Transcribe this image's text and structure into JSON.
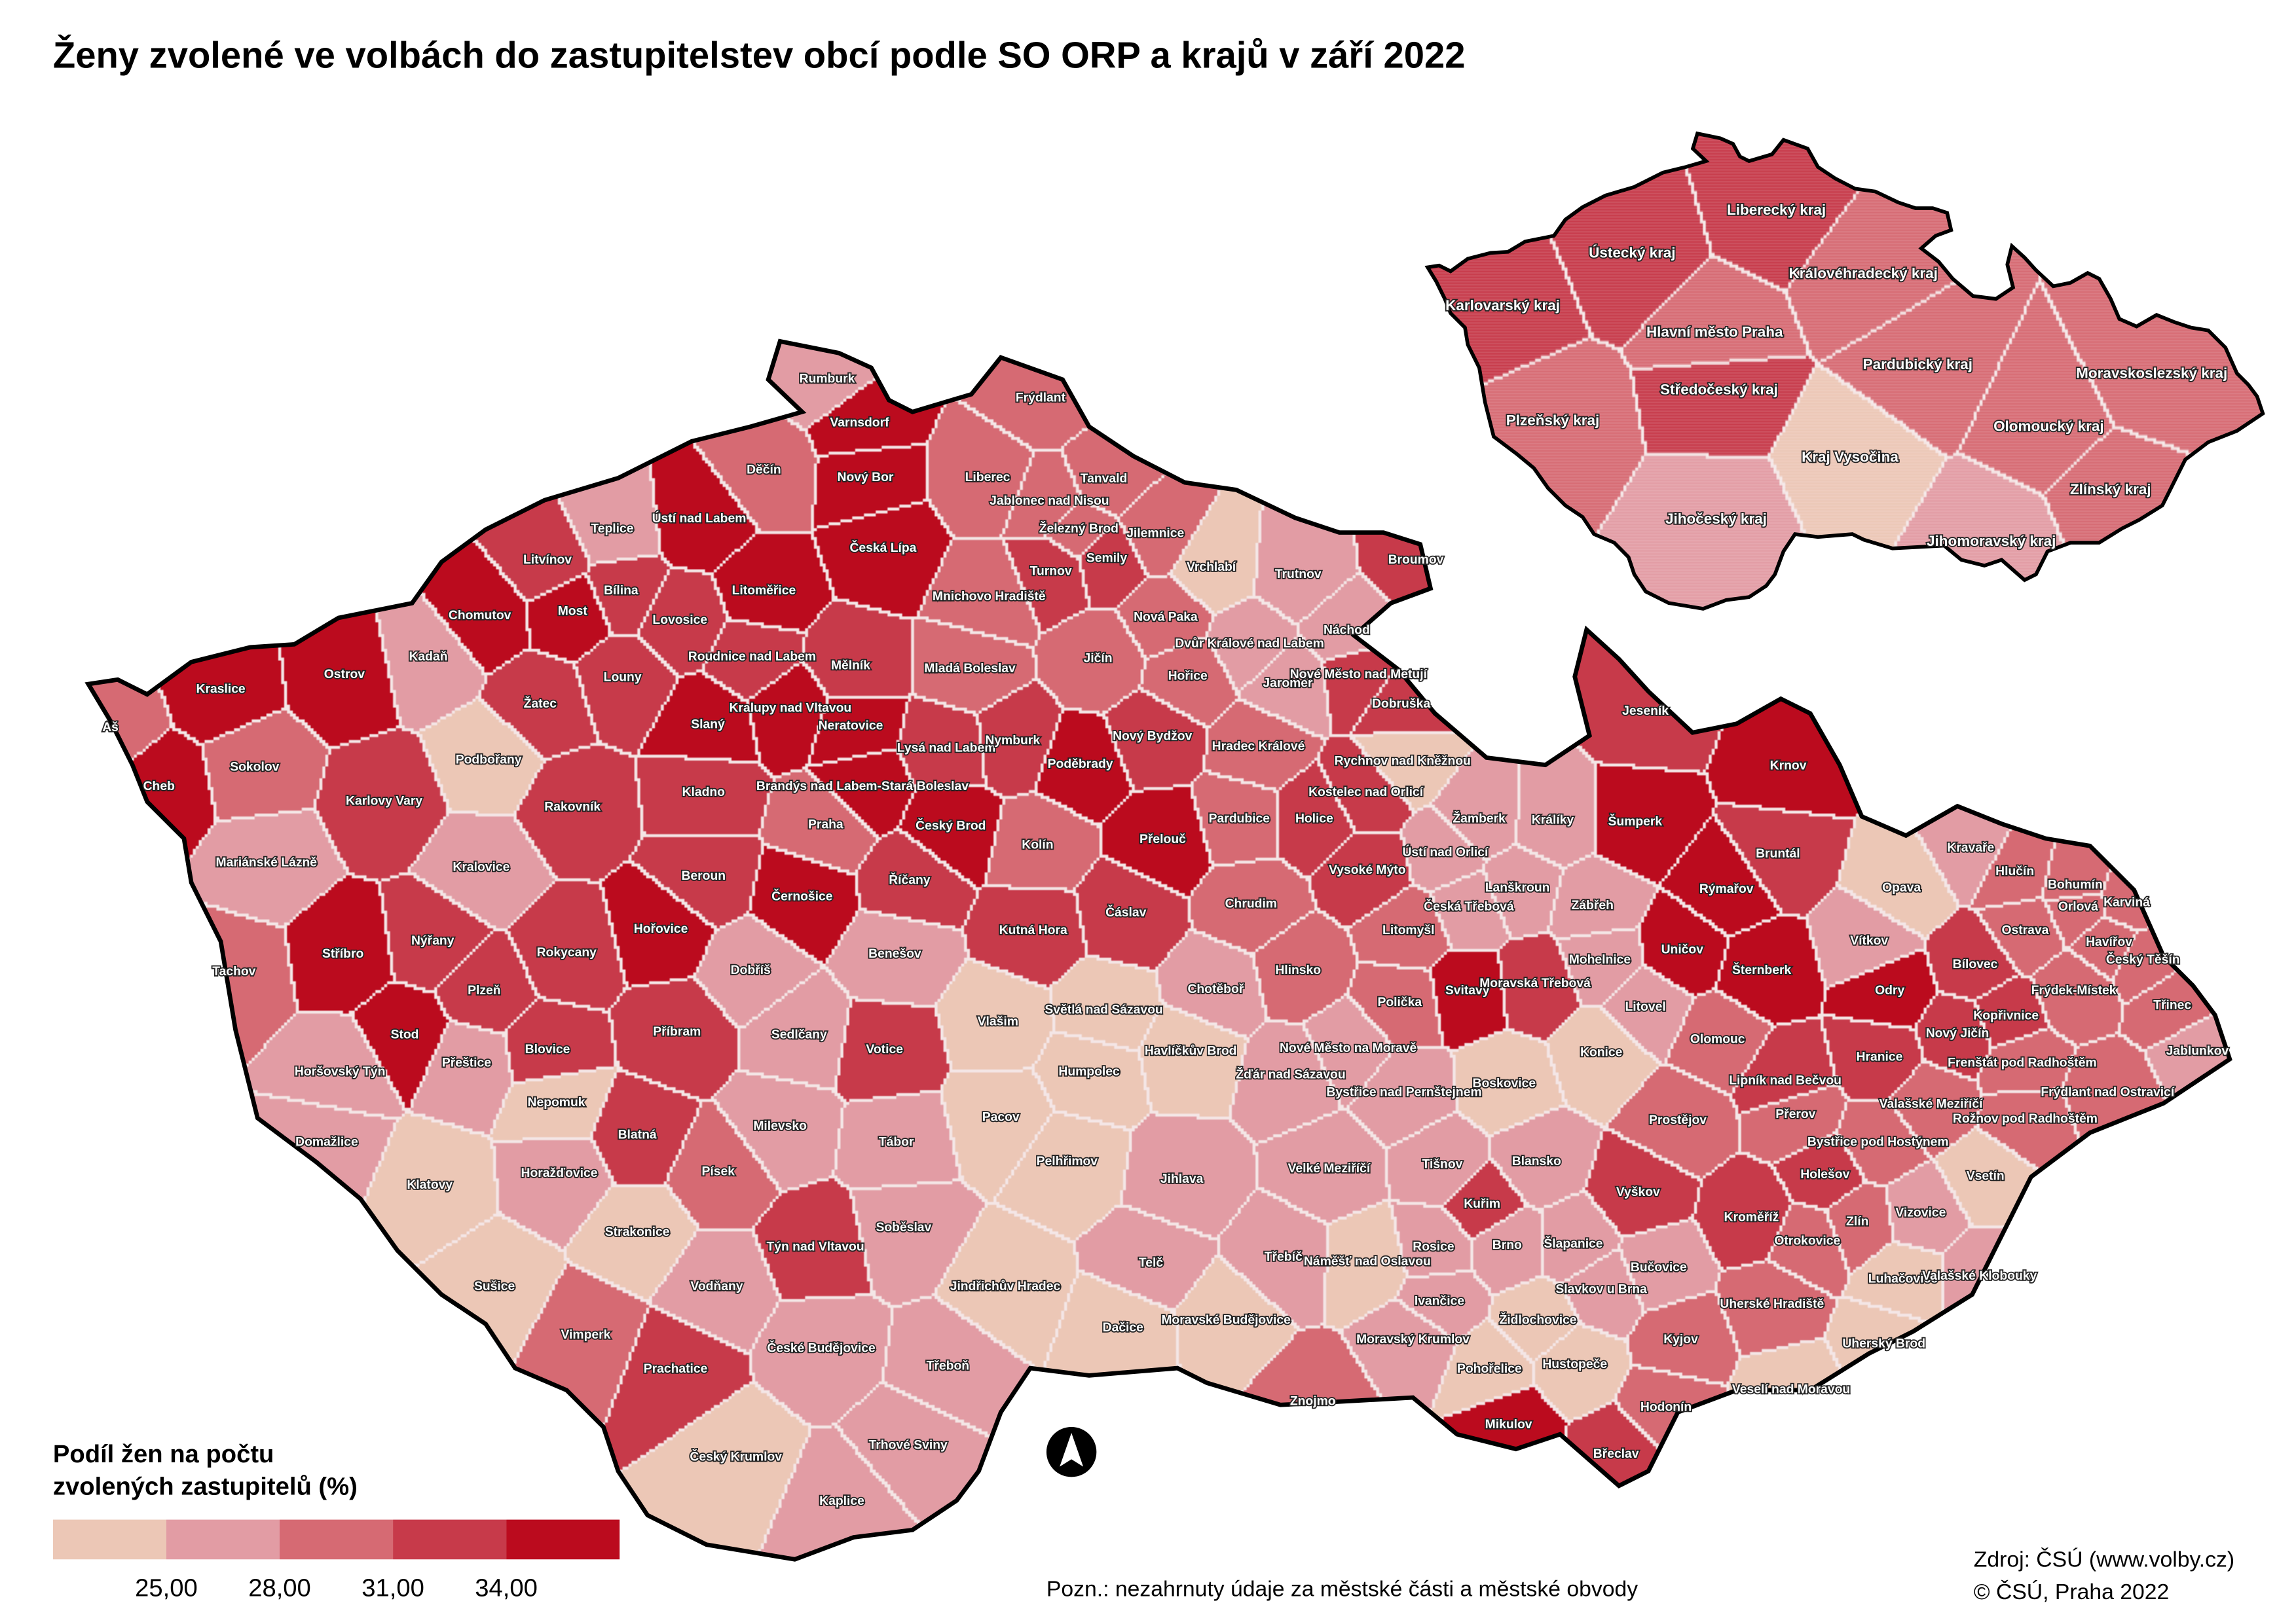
{
  "title": "Ženy zvolené ve volbách do zastupitelstev obcí podle SO ORP a krajů v září 2022",
  "legend": {
    "title_line1": "Podíl žen na počtu",
    "title_line2": "zvolených zastupitelů (%)",
    "ticks": [
      "25,00",
      "28,00",
      "31,00",
      "34,00"
    ],
    "colors": [
      "#ecc7b6",
      "#e29ca4",
      "#d66a73",
      "#c73a4a",
      "#bb0b1e"
    ]
  },
  "note": "Pozn.: nezahrnuty údaje za městské části a městské obvody",
  "source_line1": "Zdroj: ČSÚ (www.volby.cz)",
  "source_line2": "© ČSÚ, Praha 2022",
  "north_arrow": "north-arrow-icon",
  "kraje": [
    {
      "name": "Liberecký kraj",
      "class": 3
    },
    {
      "name": "Ústecký kraj",
      "class": 3
    },
    {
      "name": "Královéhradecký kraj",
      "class": 2
    },
    {
      "name": "Karlovarský kraj",
      "class": 3
    },
    {
      "name": "Hlavní město Praha",
      "class": 2
    },
    {
      "name": "Pardubický kraj",
      "class": 2
    },
    {
      "name": "Moravskoslezský kraj",
      "class": 2
    },
    {
      "name": "Středočeský kraj",
      "class": 3
    },
    {
      "name": "Plzeňský kraj",
      "class": 2
    },
    {
      "name": "Olomoucký kraj",
      "class": 2
    },
    {
      "name": "Kraj Vysočina",
      "class": 0
    },
    {
      "name": "Zlínský kraj",
      "class": 2
    },
    {
      "name": "Jihočeský kraj",
      "class": 1
    },
    {
      "name": "Jihomoravský kraj",
      "class": 1
    }
  ],
  "orp": [
    {
      "name": "Rumburk",
      "class": 1
    },
    {
      "name": "Varnsdorf",
      "class": 4
    },
    {
      "name": "Frýdlant",
      "class": 2
    },
    {
      "name": "Děčín",
      "class": 2
    },
    {
      "name": "Nový Bor",
      "class": 4
    },
    {
      "name": "Liberec",
      "class": 2
    },
    {
      "name": "Tanvald",
      "class": 2
    },
    {
      "name": "Jablonec nad Nisou",
      "class": 2
    },
    {
      "name": "Teplice",
      "class": 1
    },
    {
      "name": "Ústí nad Labem",
      "class": 4
    },
    {
      "name": "Železný Brod",
      "class": 2
    },
    {
      "name": "Jilemnice",
      "class": 2
    },
    {
      "name": "Česká Lípa",
      "class": 4
    },
    {
      "name": "Litvínov",
      "class": 3
    },
    {
      "name": "Semily",
      "class": 3
    },
    {
      "name": "Vrchlabí",
      "class": 0
    },
    {
      "name": "Trutnov",
      "class": 1
    },
    {
      "name": "Broumov",
      "class": 3
    },
    {
      "name": "Turnov",
      "class": 3
    },
    {
      "name": "Bílina",
      "class": 3
    },
    {
      "name": "Most",
      "class": 4
    },
    {
      "name": "Chomutov",
      "class": 4
    },
    {
      "name": "Litoměřice",
      "class": 4
    },
    {
      "name": "Mnichovo Hradiště",
      "class": 2
    },
    {
      "name": "Lovosice",
      "class": 3
    },
    {
      "name": "Nová Paka",
      "class": 2
    },
    {
      "name": "Kadaň",
      "class": 1
    },
    {
      "name": "Ostrov",
      "class": 4
    },
    {
      "name": "Roudnice nad Labem",
      "class": 3
    },
    {
      "name": "Mělník",
      "class": 3
    },
    {
      "name": "Mladá Boleslav",
      "class": 2
    },
    {
      "name": "Jičín",
      "class": 2
    },
    {
      "name": "Dvůr Králové nad Labem",
      "class": 1
    },
    {
      "name": "Náchod",
      "class": 1
    },
    {
      "name": "Louny",
      "class": 3
    },
    {
      "name": "Žatec",
      "class": 3
    },
    {
      "name": "Hořice",
      "class": 2
    },
    {
      "name": "Jaroměř",
      "class": 1
    },
    {
      "name": "Nové Město nad Metují",
      "class": 3
    },
    {
      "name": "Kraslice",
      "class": 4
    },
    {
      "name": "Slaný",
      "class": 4
    },
    {
      "name": "Kralupy nad Vltavou",
      "class": 4
    },
    {
      "name": "Neratovice",
      "class": 4
    },
    {
      "name": "Dobruška",
      "class": 3
    },
    {
      "name": "Aš",
      "class": 2
    },
    {
      "name": "Podbořany",
      "class": 0
    },
    {
      "name": "Sokolov",
      "class": 2
    },
    {
      "name": "Lysá nad Labem",
      "class": 3
    },
    {
      "name": "Nymburk",
      "class": 3
    },
    {
      "name": "Poděbrady",
      "class": 4
    },
    {
      "name": "Nový Bydžov",
      "class": 3
    },
    {
      "name": "Hradec Králové",
      "class": 2
    },
    {
      "name": "Rychnov nad Kněžnou",
      "class": 0
    },
    {
      "name": "Cheb",
      "class": 4
    },
    {
      "name": "Karlovy Vary",
      "class": 3
    },
    {
      "name": "Rakovník",
      "class": 3
    },
    {
      "name": "Kladno",
      "class": 3
    },
    {
      "name": "Brandýs nad Labem-Stará Boleslav",
      "class": 4
    },
    {
      "name": "Kostelec nad Orlicí",
      "class": 3
    },
    {
      "name": "Praha",
      "class": 2
    },
    {
      "name": "Český Brod",
      "class": 4
    },
    {
      "name": "Pardubice",
      "class": 2
    },
    {
      "name": "Holice",
      "class": 3
    },
    {
      "name": "Žamberk",
      "class": 1
    },
    {
      "name": "Králíky",
      "class": 1
    },
    {
      "name": "Šumperk",
      "class": 4
    },
    {
      "name": "Jeseník",
      "class": 3
    },
    {
      "name": "Krnov",
      "class": 4
    },
    {
      "name": "Kolín",
      "class": 2
    },
    {
      "name": "Přelouč",
      "class": 4
    },
    {
      "name": "Ústí nad Orlicí",
      "class": 1
    },
    {
      "name": "Bruntál",
      "class": 3
    },
    {
      "name": "Mariánské Lázně",
      "class": 1
    },
    {
      "name": "Kralovice",
      "class": 1
    },
    {
      "name": "Beroun",
      "class": 3
    },
    {
      "name": "Říčany",
      "class": 3
    },
    {
      "name": "Vysoké Mýto",
      "class": 3
    },
    {
      "name": "Lanškroun",
      "class": 1
    },
    {
      "name": "Rýmařov",
      "class": 4
    },
    {
      "name": "Kravaře",
      "class": 1
    },
    {
      "name": "Hlučín",
      "class": 2
    },
    {
      "name": "Opava",
      "class": 0
    },
    {
      "name": "Bohumín",
      "class": 2
    },
    {
      "name": "Orlová",
      "class": 2
    },
    {
      "name": "Karviná",
      "class": 2
    },
    {
      "name": "Černošice",
      "class": 4
    },
    {
      "name": "Chrudim",
      "class": 2
    },
    {
      "name": "Česká Třebová",
      "class": 1
    },
    {
      "name": "Zábřeh",
      "class": 1
    },
    {
      "name": "Ostrava",
      "class": 2
    },
    {
      "name": "Vítkov",
      "class": 1
    },
    {
      "name": "Litomyšl",
      "class": 2
    },
    {
      "name": "Kutná Hora",
      "class": 3
    },
    {
      "name": "Čáslav",
      "class": 3
    },
    {
      "name": "Hořovice",
      "class": 4
    },
    {
      "name": "Nýřany",
      "class": 3
    },
    {
      "name": "Stříbro",
      "class": 4
    },
    {
      "name": "Rokycany",
      "class": 3
    },
    {
      "name": "Benešov",
      "class": 1
    },
    {
      "name": "Uničov",
      "class": 4
    },
    {
      "name": "Mohelnice",
      "class": 1
    },
    {
      "name": "Šternberk",
      "class": 4
    },
    {
      "name": "Havířov",
      "class": 2
    },
    {
      "name": "Český Těšín",
      "class": 2
    },
    {
      "name": "Bílovec",
      "class": 3
    },
    {
      "name": "Tachov",
      "class": 2
    },
    {
      "name": "Dobříš",
      "class": 1
    },
    {
      "name": "Hlinsko",
      "class": 2
    },
    {
      "name": "Svitavy",
      "class": 4
    },
    {
      "name": "Moravská Třebová",
      "class": 3
    },
    {
      "name": "Chotěboř",
      "class": 1
    },
    {
      "name": "Frýdek-Místek",
      "class": 2
    },
    {
      "name": "Odry",
      "class": 4
    },
    {
      "name": "Třinec",
      "class": 2
    },
    {
      "name": "Plzeň",
      "class": 3
    },
    {
      "name": "Kopřivnice",
      "class": 3
    },
    {
      "name": "Vlašim",
      "class": 0
    },
    {
      "name": "Světlá nad Sázavou",
      "class": 0
    },
    {
      "name": "Polička",
      "class": 2
    },
    {
      "name": "Litovel",
      "class": 1
    },
    {
      "name": "Přeštice",
      "class": 1
    },
    {
      "name": "Stod",
      "class": 4
    },
    {
      "name": "Příbram",
      "class": 3
    },
    {
      "name": "Sedlčany",
      "class": 1
    },
    {
      "name": "Blovice",
      "class": 3
    },
    {
      "name": "Nový Jičín",
      "class": 3
    },
    {
      "name": "Olomouc",
      "class": 2
    },
    {
      "name": "Frenštát pod Radhoštěm",
      "class": 2
    },
    {
      "name": "Jablunkov",
      "class": 1
    },
    {
      "name": "Votice",
      "class": 3
    },
    {
      "name": "Humpolec",
      "class": 0
    },
    {
      "name": "Havlíčkův Brod",
      "class": 0
    },
    {
      "name": "Nové Město na Moravě",
      "class": 1
    },
    {
      "name": "Konice",
      "class": 0
    },
    {
      "name": "Hranice",
      "class": 3
    },
    {
      "name": "Horšovský Týn",
      "class": 1
    },
    {
      "name": "Žďár nad Sázavou",
      "class": 1
    },
    {
      "name": "Bystřice nad Pernštejnem",
      "class": 1
    },
    {
      "name": "Boskovice",
      "class": 0
    },
    {
      "name": "Lipník nad Bečvou",
      "class": 3
    },
    {
      "name": "Valašské Meziříčí",
      "class": 2
    },
    {
      "name": "Rožnov pod Radhoštěm",
      "class": 2
    },
    {
      "name": "Frýdlant nad Ostravicí",
      "class": 2
    },
    {
      "name": "Nepomuk",
      "class": 0
    },
    {
      "name": "Pacov",
      "class": 0
    },
    {
      "name": "Prostějov",
      "class": 2
    },
    {
      "name": "Přerov",
      "class": 2
    },
    {
      "name": "Domažlice",
      "class": 1
    },
    {
      "name": "Milevsko",
      "class": 1
    },
    {
      "name": "Blatná",
      "class": 3
    },
    {
      "name": "Tábor",
      "class": 1
    },
    {
      "name": "Bystřice pod Hostýnem",
      "class": 2
    },
    {
      "name": "Pelhřimov",
      "class": 0
    },
    {
      "name": "Klatovy",
      "class": 0
    },
    {
      "name": "Horažďovice",
      "class": 1
    },
    {
      "name": "Písek",
      "class": 2
    },
    {
      "name": "Tišnov",
      "class": 1
    },
    {
      "name": "Blansko",
      "class": 1
    },
    {
      "name": "Velké Meziříčí",
      "class": 1
    },
    {
      "name": "Holešov",
      "class": 3
    },
    {
      "name": "Vsetín",
      "class": 0
    },
    {
      "name": "Jihlava",
      "class": 1
    },
    {
      "name": "Vyškov",
      "class": 3
    },
    {
      "name": "Kuřim",
      "class": 3
    },
    {
      "name": "Strakonice",
      "class": 0
    },
    {
      "name": "Soběslav",
      "class": 1
    },
    {
      "name": "Kroměříž",
      "class": 3
    },
    {
      "name": "Zlín",
      "class": 2
    },
    {
      "name": "Vizovice",
      "class": 1
    },
    {
      "name": "Otrokovice",
      "class": 2
    },
    {
      "name": "Rosice",
      "class": 1
    },
    {
      "name": "Brno",
      "class": 1
    },
    {
      "name": "Šlapanice",
      "class": 1
    },
    {
      "name": "Týn nad Vltavou",
      "class": 3
    },
    {
      "name": "Telč",
      "class": 1
    },
    {
      "name": "Třebíč",
      "class": 1
    },
    {
      "name": "Náměšť nad Oslavou",
      "class": 0
    },
    {
      "name": "Bučovice",
      "class": 1
    },
    {
      "name": "Slavkov u Brna",
      "class": 1
    },
    {
      "name": "Luhačovice",
      "class": 0
    },
    {
      "name": "Valašské Klobouky",
      "class": 1
    },
    {
      "name": "Sušice",
      "class": 0
    },
    {
      "name": "Vodňany",
      "class": 1
    },
    {
      "name": "Jindřichův Hradec",
      "class": 0
    },
    {
      "name": "Ivančice",
      "class": 1
    },
    {
      "name": "Uherské Hradiště",
      "class": 2
    },
    {
      "name": "Moravské Budějovice",
      "class": 0
    },
    {
      "name": "Dačice",
      "class": 0
    },
    {
      "name": "Vimperk",
      "class": 2
    },
    {
      "name": "Židlochovice",
      "class": 0
    },
    {
      "name": "Moravský Krumlov",
      "class": 1
    },
    {
      "name": "Kyjov",
      "class": 2
    },
    {
      "name": "Uherský Brod",
      "class": 0
    },
    {
      "name": "České Budějovice",
      "class": 1
    },
    {
      "name": "Hustopeče",
      "class": 0
    },
    {
      "name": "Pohořelice",
      "class": 0
    },
    {
      "name": "Prachatice",
      "class": 3
    },
    {
      "name": "Třeboň",
      "class": 1
    },
    {
      "name": "Veselí nad Moravou",
      "class": 0
    },
    {
      "name": "Znojmo",
      "class": 2
    },
    {
      "name": "Hodonín",
      "class": 2
    },
    {
      "name": "Mikulov",
      "class": 4
    },
    {
      "name": "Trhové Sviny",
      "class": 1
    },
    {
      "name": "Český Krumlov",
      "class": 0
    },
    {
      "name": "Břeclav",
      "class": 3
    },
    {
      "name": "Kaplice",
      "class": 1
    }
  ]
}
